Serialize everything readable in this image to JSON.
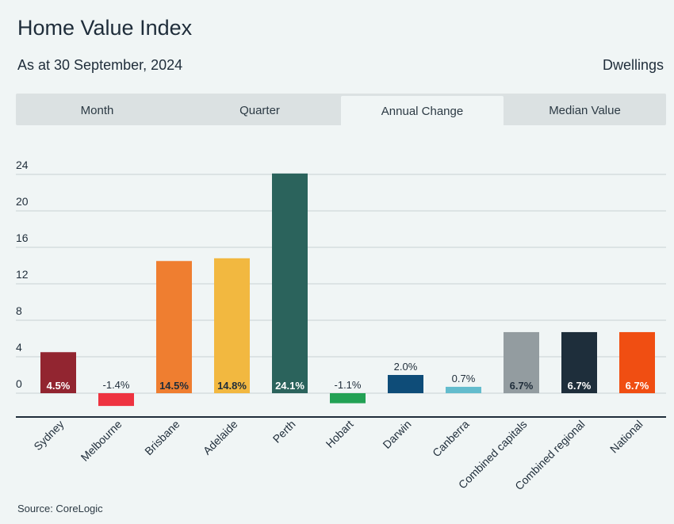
{
  "header": {
    "title": "Home Value Index",
    "subtitle": "As at 30 September, 2024",
    "segment": "Dwellings"
  },
  "tabs": [
    {
      "label": "Month",
      "active": false
    },
    {
      "label": "Quarter",
      "active": false
    },
    {
      "label": "Annual Change",
      "active": true
    },
    {
      "label": "Median Value",
      "active": false
    }
  ],
  "source": "Source: CoreLogic",
  "chart_data": {
    "type": "bar",
    "title": "",
    "xlabel": "",
    "ylabel": "",
    "ylim": [
      -2.5,
      26
    ],
    "yticks": [
      0,
      4,
      8,
      12,
      16,
      20,
      24
    ],
    "grid": true,
    "legend": "none",
    "categories": [
      "Sydney",
      "Melbourne",
      "Brisbane",
      "Adelaide",
      "Perth",
      "Hobart",
      "Darwin",
      "Canberra",
      "Combined capitals",
      "Combined regional",
      "National"
    ],
    "values": [
      4.5,
      -1.4,
      14.5,
      14.8,
      24.1,
      -1.1,
      2.0,
      0.7,
      6.7,
      6.7,
      6.7
    ],
    "labels": [
      "4.5%",
      "-1.4%",
      "14.5%",
      "14.8%",
      "24.1%",
      "-1.1%",
      "2.0%",
      "0.7%",
      "6.7%",
      "6.7%",
      "6.7%"
    ],
    "colors": [
      "#922530",
      "#ee3340",
      "#ef7e30",
      "#f2b840",
      "#2b635c",
      "#22a154",
      "#0e4c78",
      "#63bccd",
      "#939ca0",
      "#1e2e3b",
      "#f04e12"
    ],
    "label_colors": [
      "#ffffff",
      "#1f2d3a",
      "#1f2d3a",
      "#1f2d3a",
      "#ffffff",
      "#1f2d3a",
      "#1f2d3a",
      "#1f2d3a",
      "#1f2d3a",
      "#ffffff",
      "#ffffff"
    ]
  }
}
